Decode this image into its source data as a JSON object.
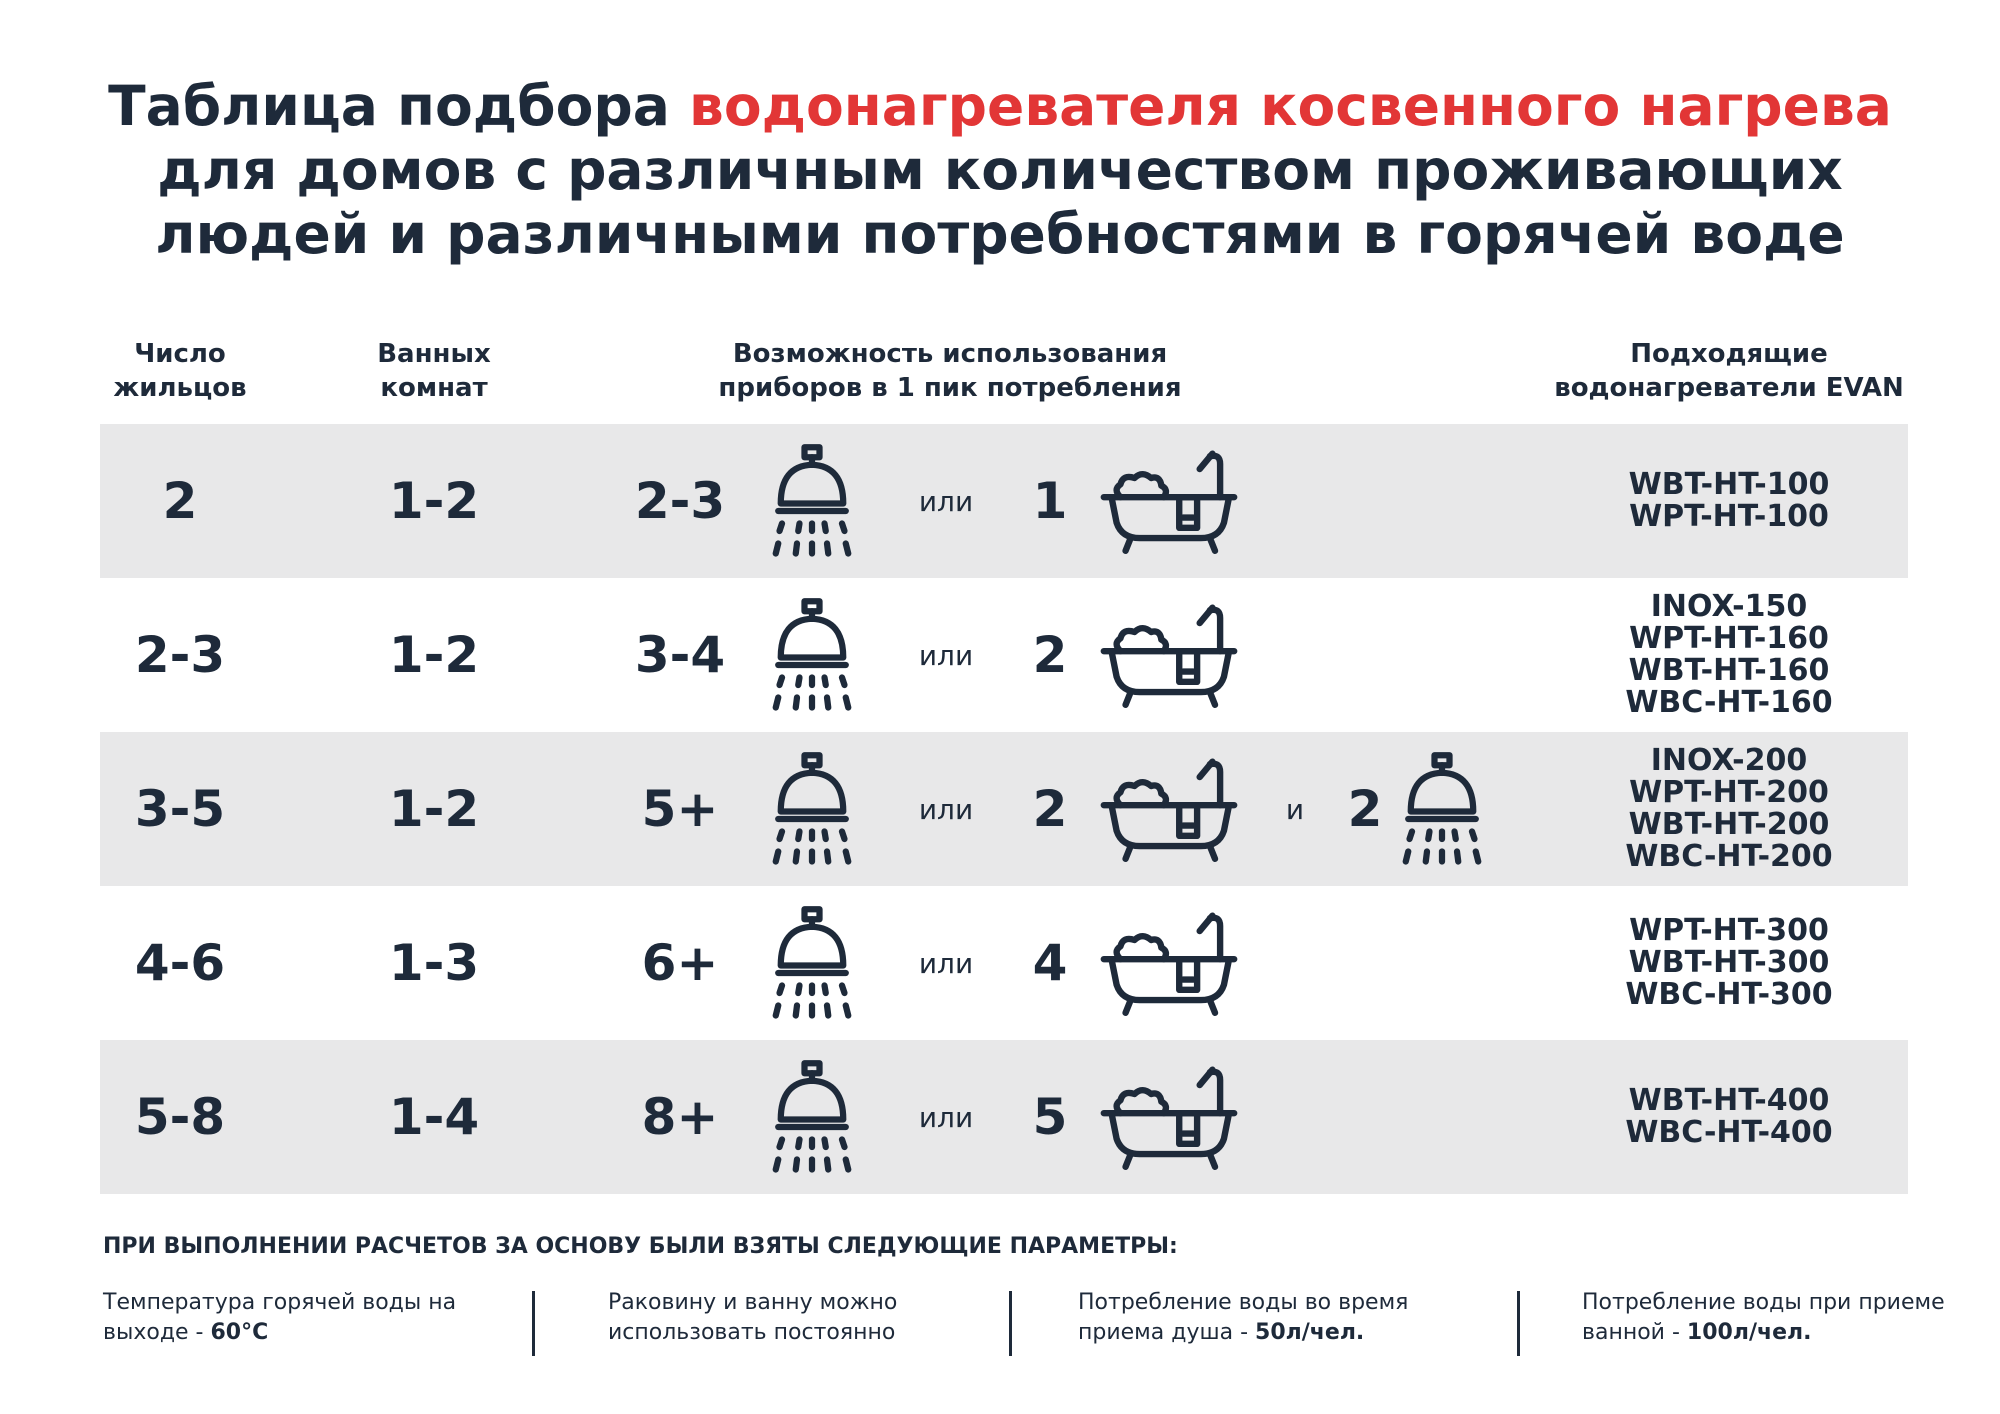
{
  "header": {
    "title_line1_dark": "Таблица подбора",
    "title_line1_red": "водонагревателя косвенного нагрева",
    "title_line2": "для домов с различным количеством проживающих",
    "title_line3": "людей и различными потребностями в горячей воде"
  },
  "table": {
    "columns": [
      "Число жильцов",
      "Ванных комнат",
      "Возможность использования приборов в 1 пик потребления",
      "Подходящие водонагреватели EVAN"
    ],
    "rows": [
      {
        "residents": "2",
        "bathrooms": "1-2",
        "showers": "2-3",
        "or": "или",
        "baths": "1",
        "models": [
          "WBT-HT-100",
          "WPT-HT-100"
        ]
      },
      {
        "residents": "2-3",
        "bathrooms": "1-2",
        "showers": "3-4",
        "or": "или",
        "baths": "2",
        "models": [
          "INOX-150",
          "WPT-HT-160",
          "WBT-HT-160",
          "WBC-HT-160"
        ]
      },
      {
        "residents": "3-5",
        "bathrooms": "1-2",
        "showers": "5+",
        "or": "или",
        "baths": "2",
        "and": "и",
        "extra_showers": "2",
        "models": [
          "INOX-200",
          "WPT-HT-200",
          "WBT-HT-200",
          "WBC-HT-200"
        ]
      },
      {
        "residents": "4-6",
        "bathrooms": "1-3",
        "showers": "6+",
        "or": "или",
        "baths": "4",
        "models": [
          "WPT-HT-300",
          "WBT-HT-300",
          "WBC-HT-300"
        ]
      },
      {
        "residents": "5-8",
        "bathrooms": "1-4",
        "showers": "8+",
        "or": "или",
        "baths": "5",
        "models": [
          "WBT-HT-400",
          "WBC-HT-400"
        ]
      }
    ]
  },
  "footer": {
    "title": "ПРИ ВЫПОЛНЕНИИ РАСЧЕТОВ ЗА ОСНОВУ БЫЛИ ВЗЯТЫ СЛЕДУЮЩИЕ ПАРАМЕТРЫ:",
    "items": [
      {
        "text": "Температура горячей воды на выходе -",
        "bold": "60°C"
      },
      {
        "text": "Раковину и ванну можно использовать постоянно"
      },
      {
        "text": "Потребление воды во время приема душа -",
        "bold": "50л/чел."
      },
      {
        "text": "Потребление воды при приеме ванной -",
        "bold": "100л/чел."
      }
    ]
  }
}
